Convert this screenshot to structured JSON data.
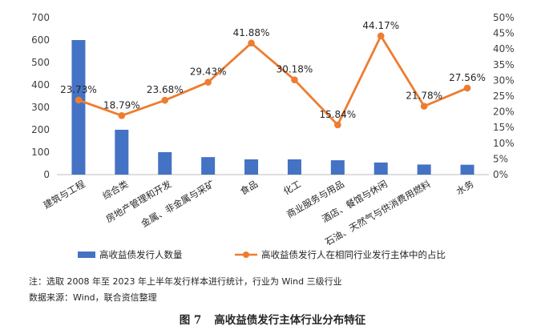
{
  "chart_data": {
    "type": "bar+line",
    "categories": [
      "建筑与工程",
      "综合类",
      "房地产管理和开发",
      "金属、非金属与采矿",
      "食品",
      "化工",
      "商业服务与用品",
      "酒店、餐馆与休闲",
      "石油、天然气与供消费用燃料",
      "水务"
    ],
    "series": [
      {
        "name": "高收益债发行人数量",
        "type": "bar",
        "axis": "left",
        "color": "#4472C4",
        "values": [
          600,
          200,
          100,
          78,
          68,
          68,
          64,
          54,
          45,
          44
        ]
      },
      {
        "name": "高收益债发行人在相同行业发行主体中的占比",
        "type": "line",
        "axis": "right",
        "color": "#ED7D31",
        "values": [
          23.73,
          18.79,
          23.68,
          29.43,
          41.88,
          30.18,
          15.84,
          44.17,
          21.78,
          27.56
        ],
        "labels": [
          "23.73%",
          "18.79%",
          "23.68%",
          "29.43%",
          "41.88%",
          "30.18%",
          "15.84%",
          "44.17%",
          "21.78%",
          "27.56%"
        ]
      }
    ],
    "y_left": {
      "min": 0,
      "max": 700,
      "ticks": [
        "0",
        "100",
        "200",
        "300",
        "400",
        "500",
        "600",
        "700"
      ]
    },
    "y_right": {
      "min": 0,
      "max": 50,
      "ticks": [
        "0%",
        "5%",
        "10%",
        "15%",
        "20%",
        "25%",
        "30%",
        "35%",
        "40%",
        "45%",
        "50%"
      ]
    },
    "legend_position": "bottom",
    "grid": false
  },
  "notes": {
    "note": "注：选取 2008 年至 2023 年上半年发行样本进行统计，行业为 Wind 三级行业",
    "source": "数据来源：Wind，联合资信整理"
  },
  "caption": {
    "number": "图 7",
    "title": "高收益债发行主体行业分布特征"
  }
}
